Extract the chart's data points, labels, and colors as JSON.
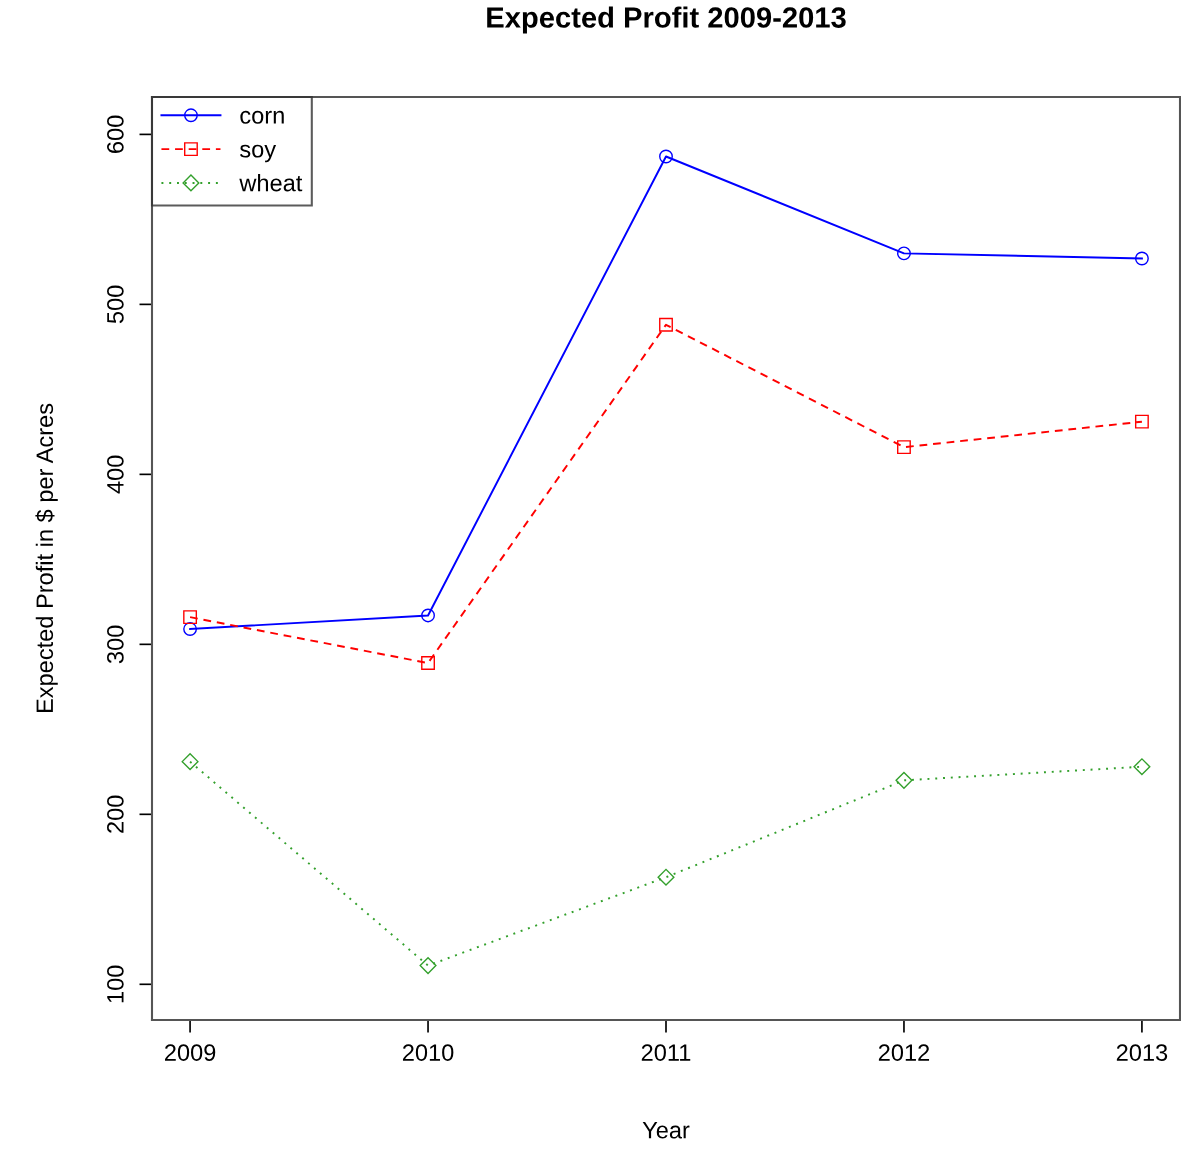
{
  "chart_data": {
    "type": "line",
    "title": "Expected Profit 2009-2013",
    "xlabel": "Year",
    "ylabel": "Expected Profit in $ per Acres",
    "x": [
      2009,
      2010,
      2011,
      2012,
      2013
    ],
    "xlim": [
      2008.84,
      2013.16
    ],
    "xticks": [
      2009,
      2010,
      2011,
      2012,
      2013
    ],
    "ylim": [
      79,
      622
    ],
    "yticks": [
      100,
      200,
      300,
      400,
      500,
      600
    ],
    "grid": false,
    "legend": "top left",
    "series": [
      {
        "name": "corn",
        "color": "#0000ff",
        "marker": "circle",
        "line_style": "solid",
        "values": [
          309,
          317,
          587,
          530,
          527
        ]
      },
      {
        "name": "soy",
        "color": "#ff0000",
        "marker": "square",
        "line_style": "dashed",
        "values": [
          316,
          289,
          488,
          416,
          431
        ]
      },
      {
        "name": "wheat",
        "color": "#33a02c",
        "marker": "diamond",
        "line_style": "dotted",
        "values": [
          231,
          111,
          163,
          220,
          228
        ]
      }
    ]
  }
}
